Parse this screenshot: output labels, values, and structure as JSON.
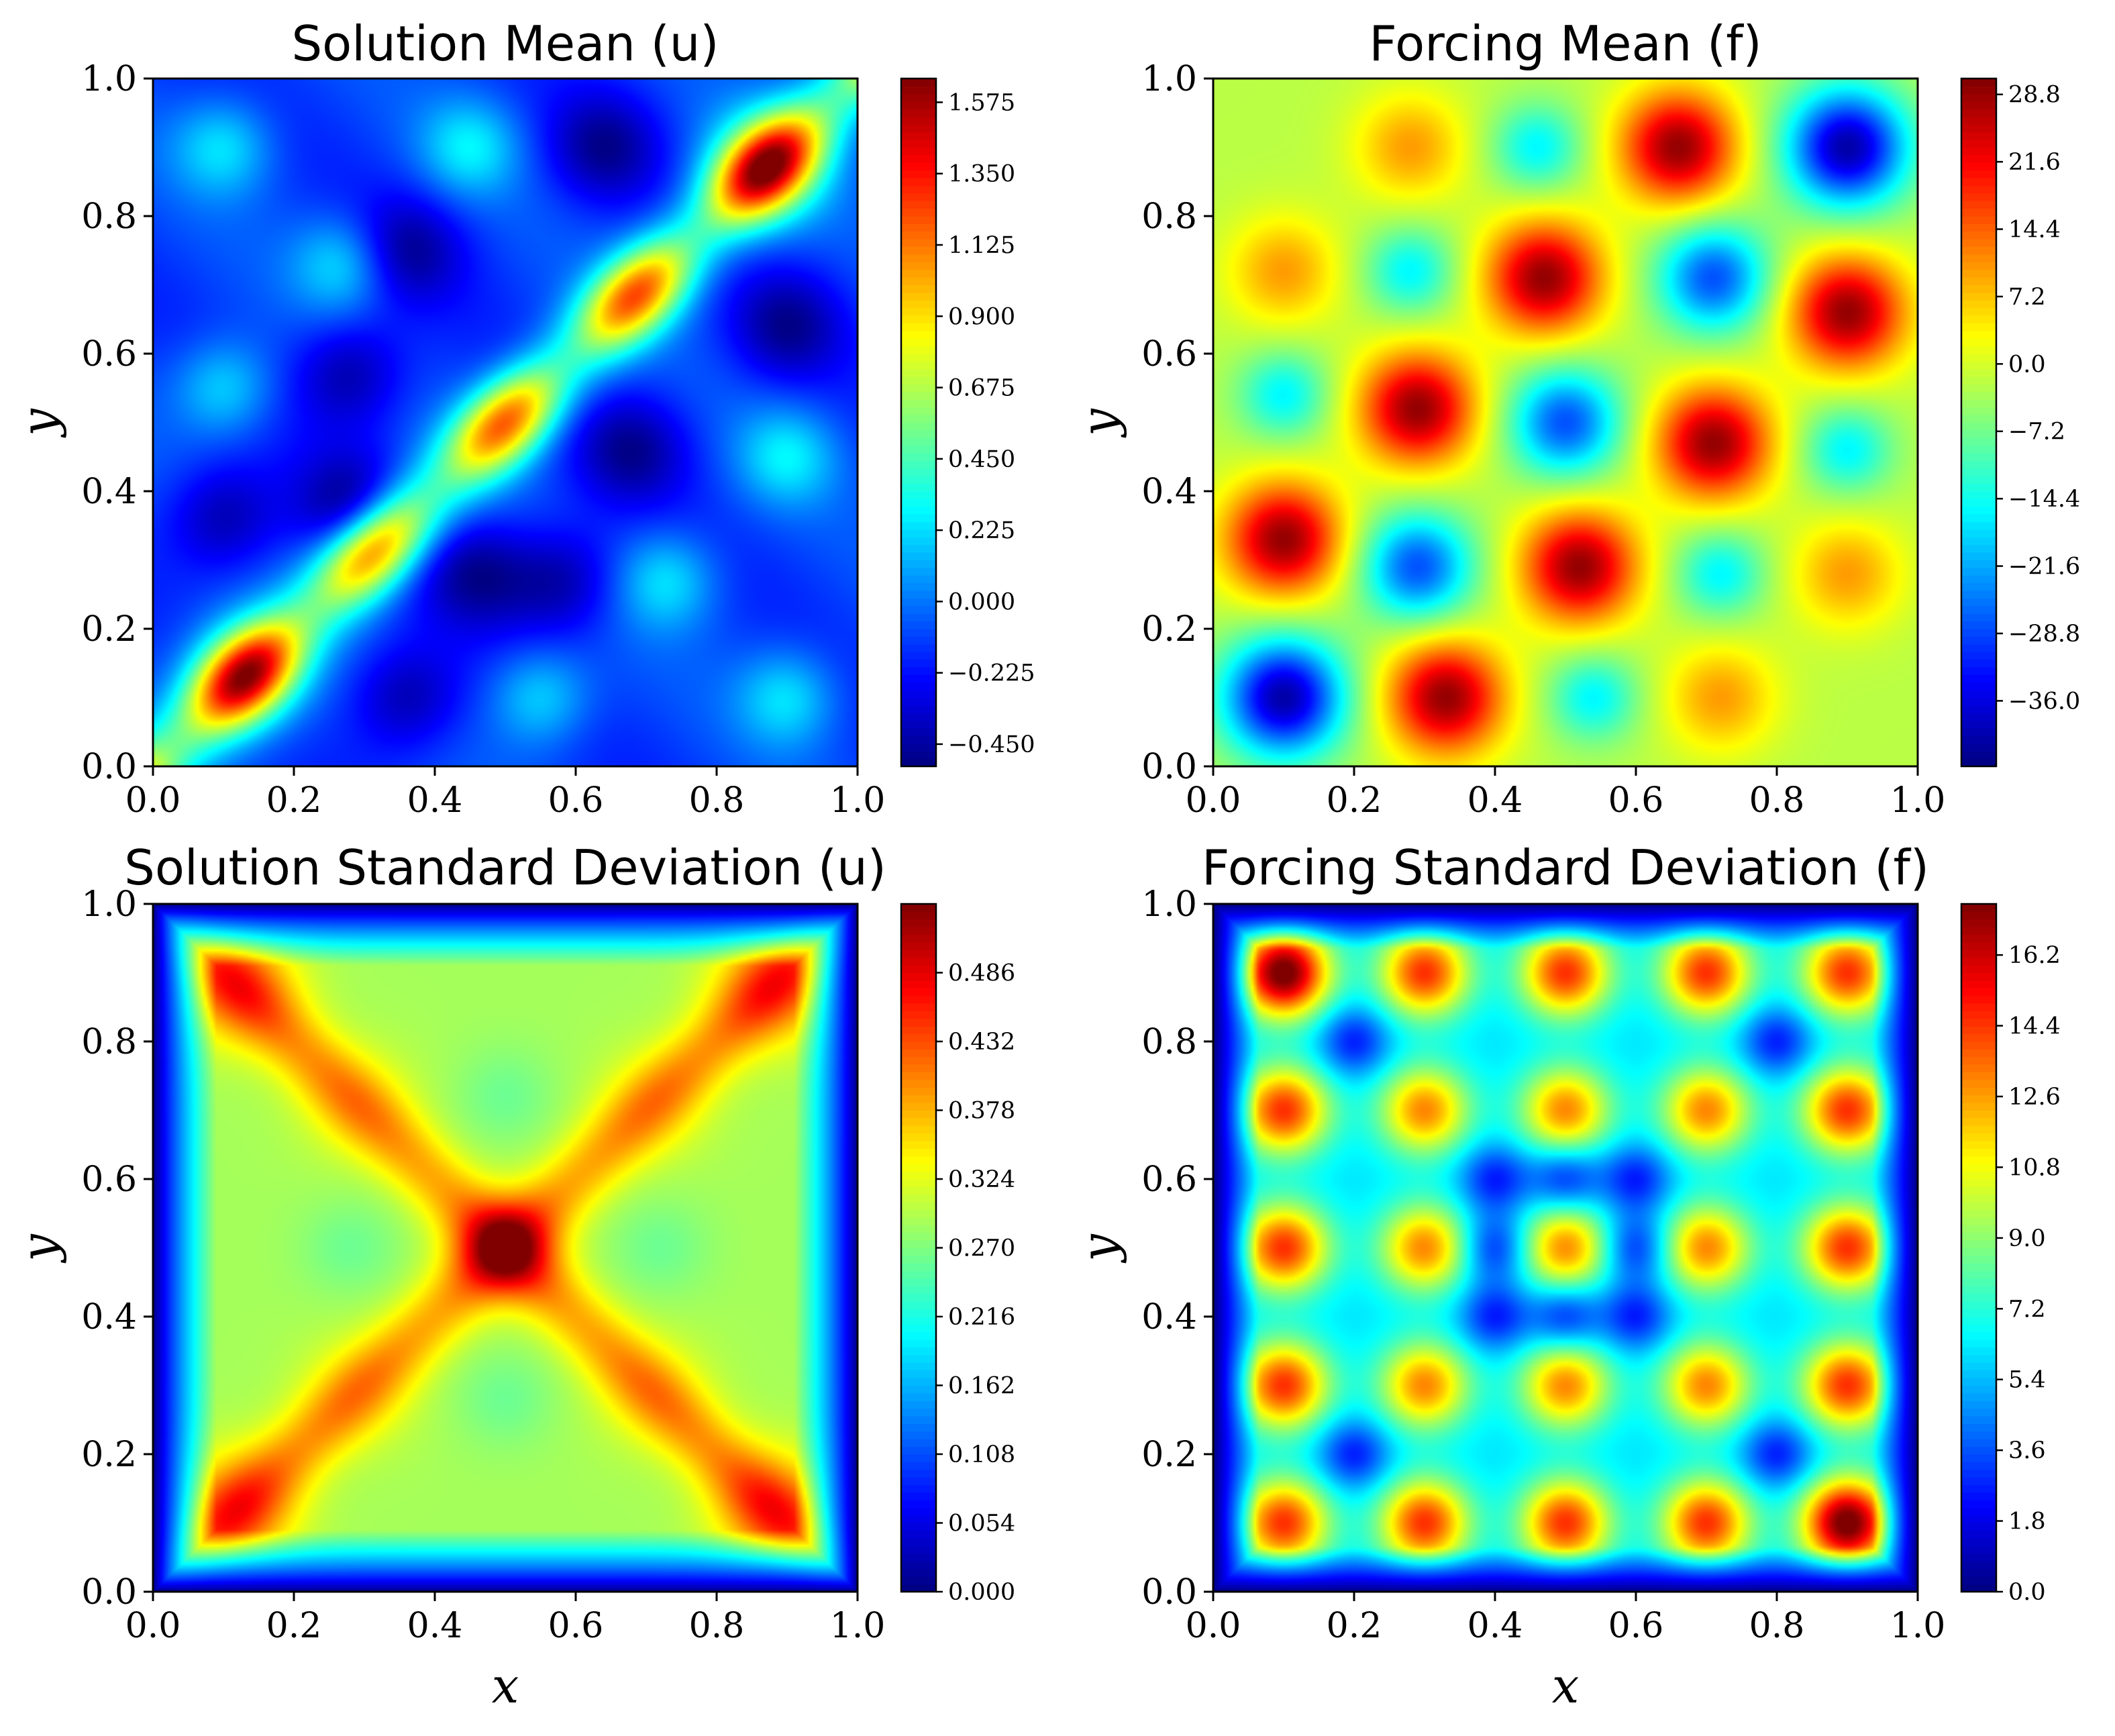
{
  "chart_data": [
    {
      "type": "heatmap",
      "title": "Solution Mean (u)",
      "xlabel": "",
      "ylabel": "y",
      "xlim": [
        0,
        1
      ],
      "ylim": [
        0,
        1
      ],
      "xticks": [
        "0.0",
        "0.2",
        "0.4",
        "0.6",
        "0.8",
        "1.0"
      ],
      "yticks": [
        "0.0",
        "0.2",
        "0.4",
        "0.6",
        "0.8",
        "1.0"
      ],
      "colormap": "jet",
      "value_range": [
        -0.52,
        1.65
      ],
      "colorbar_ticks": [
        -0.45,
        -0.225,
        0.0,
        0.225,
        0.45,
        0.675,
        0.9,
        1.125,
        1.35,
        1.575
      ],
      "colorbar_tick_labels": [
        "−0.450",
        "−0.225",
        "0.000",
        "0.225",
        "0.450",
        "0.675",
        "0.900",
        "1.125",
        "1.350",
        "1.575"
      ],
      "peaks": [
        {
          "x": 0.13,
          "y": 0.13,
          "value": 1.6
        },
        {
          "x": 0.87,
          "y": 0.87,
          "value": 1.6
        },
        {
          "x": 0.5,
          "y": 0.5,
          "value": 1.35
        },
        {
          "x": 0.36,
          "y": 0.1,
          "value": -0.45
        },
        {
          "x": 0.64,
          "y": 0.9,
          "value": -0.45
        },
        {
          "x": 0.1,
          "y": 0.36,
          "value": -0.45
        },
        {
          "x": 0.9,
          "y": 0.64,
          "value": -0.45
        }
      ]
    },
    {
      "type": "heatmap",
      "title": "Forcing Mean (f)",
      "xlabel": "",
      "ylabel": "y",
      "xlim": [
        0,
        1
      ],
      "ylim": [
        0,
        1
      ],
      "xticks": [
        "0.0",
        "0.2",
        "0.4",
        "0.6",
        "0.8",
        "1.0"
      ],
      "yticks": [
        "0.0",
        "0.2",
        "0.4",
        "0.6",
        "0.8",
        "1.0"
      ],
      "colormap": "jet",
      "value_range": [
        -43,
        30.5
      ],
      "colorbar_ticks": [
        -36.0,
        -28.8,
        -21.6,
        -14.4,
        -7.2,
        0.0,
        7.2,
        14.4,
        21.6,
        28.8
      ],
      "colorbar_tick_labels": [
        "−36.0",
        "−28.8",
        "−21.6",
        "−14.4",
        "−7.2",
        "0.0",
        "7.2",
        "14.4",
        "21.6",
        "28.8"
      ],
      "peaks": [
        {
          "x": 0.1,
          "y": 0.1,
          "value": -40
        },
        {
          "x": 0.9,
          "y": 0.9,
          "value": -36
        },
        {
          "x": 0.33,
          "y": 0.1,
          "value": 29
        },
        {
          "x": 0.1,
          "y": 0.33,
          "value": 29
        },
        {
          "x": 0.66,
          "y": 0.9,
          "value": 29
        },
        {
          "x": 0.9,
          "y": 0.66,
          "value": 29
        }
      ]
    },
    {
      "type": "heatmap",
      "title": "Solution Standard Deviation (u)",
      "xlabel": "x",
      "ylabel": "y",
      "xlim": [
        0,
        1
      ],
      "ylim": [
        0,
        1
      ],
      "xticks": [
        "0.0",
        "0.2",
        "0.4",
        "0.6",
        "0.8",
        "1.0"
      ],
      "yticks": [
        "0.0",
        "0.2",
        "0.4",
        "0.6",
        "0.8",
        "1.0"
      ],
      "colormap": "jet",
      "value_range": [
        0.0,
        0.54
      ],
      "colorbar_ticks": [
        0.0,
        0.054,
        0.108,
        0.162,
        0.216,
        0.27,
        0.324,
        0.378,
        0.432,
        0.486
      ],
      "colorbar_tick_labels": [
        "0.000",
        "0.054",
        "0.108",
        "0.162",
        "0.216",
        "0.270",
        "0.324",
        "0.378",
        "0.432",
        "0.486"
      ],
      "peaks": [
        {
          "x": 0.5,
          "y": 0.5,
          "value": 0.52
        },
        {
          "x": 0.12,
          "y": 0.88,
          "value": 0.48
        },
        {
          "x": 0.88,
          "y": 0.88,
          "value": 0.48
        },
        {
          "x": 0.12,
          "y": 0.12,
          "value": 0.48
        },
        {
          "x": 0.88,
          "y": 0.12,
          "value": 0.48
        }
      ]
    },
    {
      "type": "heatmap",
      "title": "Forcing Standard Deviation (f)",
      "xlabel": "x",
      "ylabel": "y",
      "xlim": [
        0,
        1
      ],
      "ylim": [
        0,
        1
      ],
      "xticks": [
        "0.0",
        "0.2",
        "0.4",
        "0.6",
        "0.8",
        "1.0"
      ],
      "yticks": [
        "0.0",
        "0.2",
        "0.4",
        "0.6",
        "0.8",
        "1.0"
      ],
      "colormap": "jet",
      "value_range": [
        0.0,
        17.5
      ],
      "colorbar_ticks": [
        0.0,
        1.8,
        3.6,
        5.4,
        7.2,
        9.0,
        10.8,
        12.6,
        14.4,
        16.2
      ],
      "colorbar_tick_labels": [
        "0.0",
        "1.8",
        "3.6",
        "5.4",
        "7.2",
        "9.0",
        "10.8",
        "12.6",
        "14.4",
        "16.2"
      ],
      "peaks": [
        {
          "x": 0.1,
          "y": 0.9,
          "value": 17
        },
        {
          "x": 0.9,
          "y": 0.1,
          "value": 17
        },
        {
          "x": 0.5,
          "y": 0.5,
          "value": 11
        }
      ]
    }
  ]
}
